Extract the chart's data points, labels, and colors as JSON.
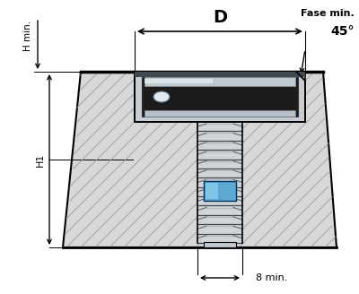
{
  "label_D": "D",
  "label_H_min": "H min.",
  "label_H1": "H1",
  "label_Fase": "Fase min.",
  "label_45": "45°",
  "label_8min": "8 min.",
  "bg_color": "#ffffff"
}
